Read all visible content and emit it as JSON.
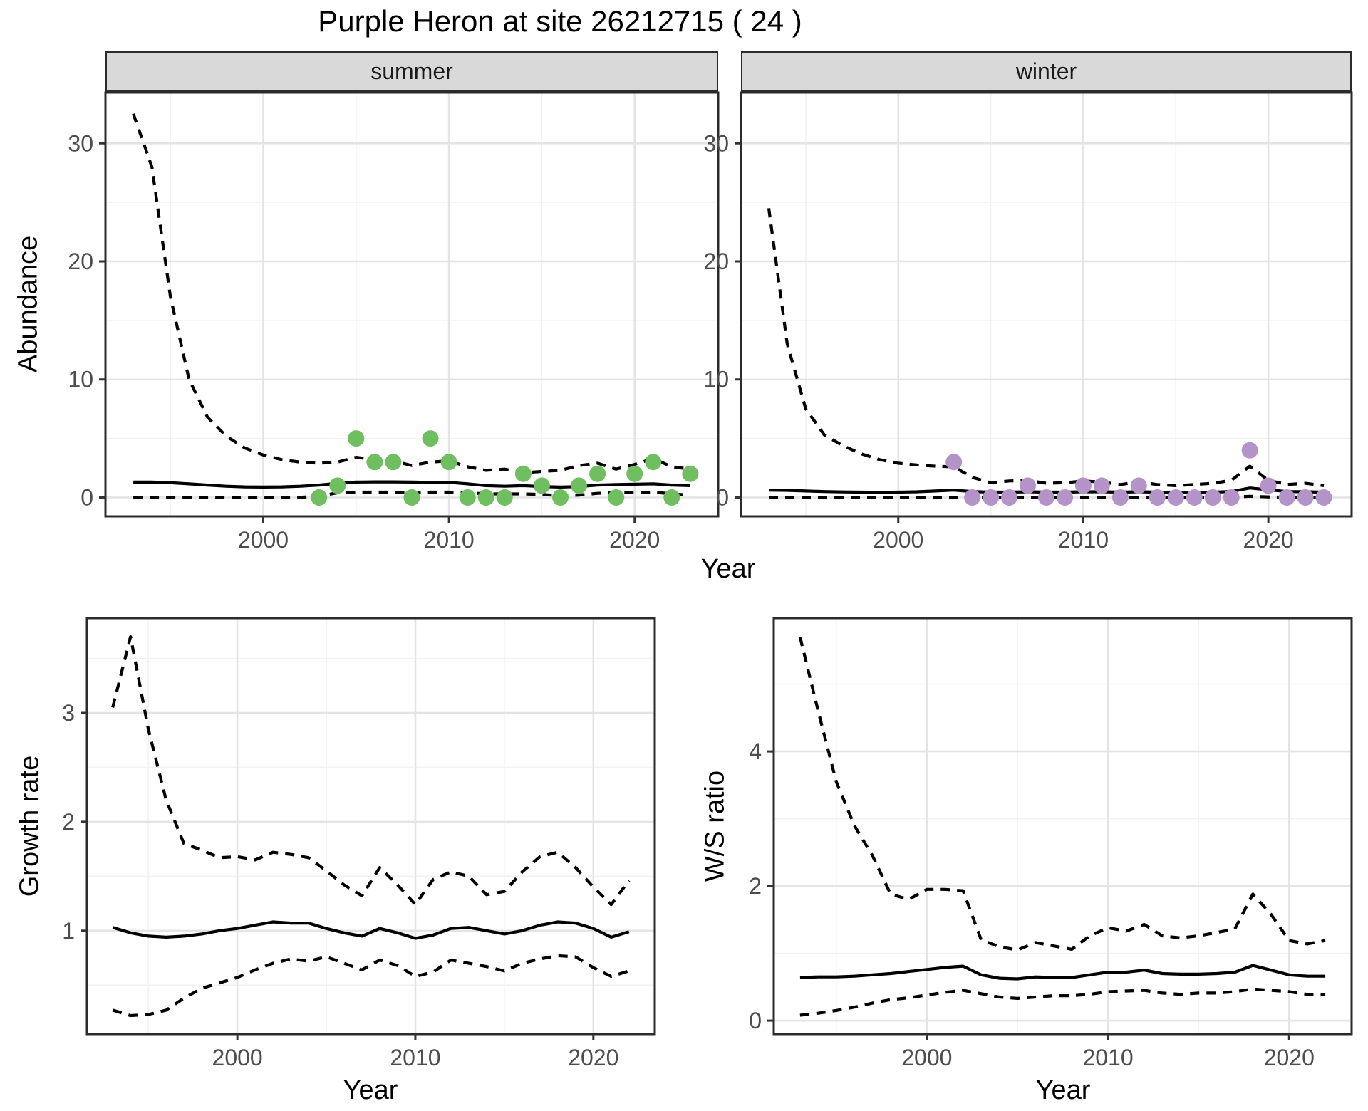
{
  "title": "Purple Heron at site 26212715 ( 24 )",
  "top_row": {
    "ylabel": "Abundance",
    "xlabel": "Year",
    "facets": [
      {
        "label": "summer"
      },
      {
        "label": "winter"
      }
    ]
  },
  "bottom_row": {
    "left": {
      "ylabel": "Growth rate",
      "xlabel": "Year"
    },
    "right": {
      "ylabel": "W/S ratio",
      "xlabel": "Year"
    }
  },
  "colors": {
    "line": "#000000",
    "panel_border": "#2b2b2b",
    "grid_major": "#e4e4e4",
    "grid_minor": "#f2f2f2",
    "tick_text": "#4d4d4d",
    "strip_bg": "#d9d9d9",
    "summer_point": "#6fbe5f",
    "winter_point": "#b493c8"
  },
  "chart_data": [
    {
      "type": "line",
      "title": "summer",
      "xlabel": "Year",
      "ylabel": "Abundance",
      "legend": "none",
      "grid": true,
      "xlim": [
        1991.5,
        2024.5
      ],
      "ylim": [
        -1.6,
        34.3
      ],
      "xticks": [
        2000,
        2010,
        2020
      ],
      "xticks_minor": [
        1995,
        2005,
        2015
      ],
      "yticks": [
        0,
        10,
        20,
        30
      ],
      "yticks_minor": [
        5,
        15,
        25
      ],
      "x": [
        1993,
        1994,
        1995,
        1996,
        1997,
        1998,
        1999,
        2000,
        2001,
        2002,
        2003,
        2004,
        2005,
        2006,
        2007,
        2008,
        2009,
        2010,
        2011,
        2012,
        2013,
        2014,
        2015,
        2016,
        2017,
        2018,
        2019,
        2020,
        2021,
        2022,
        2023
      ],
      "series": [
        {
          "name": "upper_ci",
          "style": "dashed",
          "values": [
            32.5,
            28,
            17,
            10,
            6.8,
            5.2,
            4.2,
            3.6,
            3.2,
            3.0,
            2.9,
            3.0,
            3.4,
            3.2,
            3.1,
            2.7,
            3.0,
            3.1,
            2.6,
            2.3,
            2.4,
            2.1,
            2.2,
            2.3,
            2.7,
            2.9,
            2.4,
            2.8,
            3.3,
            2.6,
            2.4
          ]
        },
        {
          "name": "fit",
          "style": "solid",
          "values": [
            1.3,
            1.3,
            1.25,
            1.15,
            1.05,
            0.95,
            0.9,
            0.88,
            0.9,
            0.95,
            1.05,
            1.2,
            1.3,
            1.32,
            1.32,
            1.3,
            1.28,
            1.28,
            1.15,
            1.0,
            0.95,
            1.0,
            0.92,
            0.88,
            0.92,
            1.05,
            1.1,
            1.12,
            1.15,
            1.05,
            1.0
          ]
        },
        {
          "name": "lower_ci",
          "style": "dashed",
          "values": [
            0.02,
            0.02,
            0.02,
            0.02,
            0.02,
            0.02,
            0.02,
            0.02,
            0.02,
            0.02,
            0.1,
            0.4,
            0.45,
            0.45,
            0.45,
            0.4,
            0.45,
            0.45,
            0.4,
            0.3,
            0.3,
            0.3,
            0.25,
            0.15,
            0.2,
            0.35,
            0.4,
            0.4,
            0.45,
            0.3,
            0.2
          ]
        }
      ],
      "points": {
        "name": "summer observed counts",
        "color": "#6fbe5f",
        "values": [
          [
            2003,
            0
          ],
          [
            2004,
            1
          ],
          [
            2005,
            5
          ],
          [
            2006,
            3
          ],
          [
            2007,
            3
          ],
          [
            2008,
            0
          ],
          [
            2009,
            5
          ],
          [
            2010,
            3
          ],
          [
            2011,
            0
          ],
          [
            2012,
            0
          ],
          [
            2013,
            0
          ],
          [
            2014,
            2
          ],
          [
            2015,
            1
          ],
          [
            2016,
            0
          ],
          [
            2017,
            1
          ],
          [
            2018,
            2
          ],
          [
            2019,
            0
          ],
          [
            2020,
            2
          ],
          [
            2021,
            3
          ],
          [
            2022,
            0
          ],
          [
            2023,
            2
          ]
        ]
      }
    },
    {
      "type": "line",
      "title": "winter",
      "xlabel": "Year",
      "ylabel": "Abundance",
      "legend": "none",
      "grid": true,
      "xlim": [
        1991.5,
        2024.5
      ],
      "ylim": [
        -1.6,
        34.3
      ],
      "xticks": [
        2000,
        2010,
        2020
      ],
      "xticks_minor": [
        1995,
        2005,
        2015
      ],
      "yticks": [
        0,
        10,
        20,
        30
      ],
      "yticks_minor": [
        5,
        15,
        25
      ],
      "x": [
        1993,
        1994,
        1995,
        1996,
        1997,
        1998,
        1999,
        2000,
        2001,
        2002,
        2003,
        2004,
        2005,
        2006,
        2007,
        2008,
        2009,
        2010,
        2011,
        2012,
        2013,
        2014,
        2015,
        2016,
        2017,
        2018,
        2019,
        2020,
        2021,
        2022,
        2023
      ],
      "series": [
        {
          "name": "upper_ci",
          "style": "dashed",
          "values": [
            24.5,
            13,
            7.5,
            5.3,
            4.4,
            3.7,
            3.2,
            2.9,
            2.75,
            2.65,
            2.6,
            1.7,
            1.25,
            1.4,
            1.45,
            1.2,
            1.25,
            1.4,
            1.3,
            1.1,
            1.3,
            1.1,
            1.0,
            1.1,
            1.2,
            1.45,
            2.65,
            1.45,
            1.1,
            1.2,
            1.0
          ]
        },
        {
          "name": "fit",
          "style": "solid",
          "values": [
            0.62,
            0.6,
            0.55,
            0.5,
            0.47,
            0.45,
            0.44,
            0.45,
            0.48,
            0.55,
            0.62,
            0.5,
            0.45,
            0.45,
            0.48,
            0.45,
            0.45,
            0.48,
            0.48,
            0.45,
            0.48,
            0.45,
            0.44,
            0.44,
            0.45,
            0.5,
            0.8,
            0.65,
            0.5,
            0.48,
            0.45
          ]
        },
        {
          "name": "lower_ci",
          "style": "dashed",
          "values": [
            0.02,
            0.02,
            0.02,
            0.02,
            0.02,
            0.02,
            0.02,
            0.02,
            0.02,
            0.02,
            0.02,
            0.02,
            0.02,
            0.02,
            0.02,
            0.02,
            0.02,
            0.02,
            0.02,
            0.02,
            0.02,
            0.02,
            0.02,
            0.02,
            0.02,
            0.02,
            0.1,
            0.05,
            0.02,
            0.02,
            0.02
          ]
        }
      ],
      "points": {
        "name": "winter observed counts",
        "color": "#b493c8",
        "values": [
          [
            2003,
            3
          ],
          [
            2004,
            0
          ],
          [
            2005,
            0
          ],
          [
            2006,
            0
          ],
          [
            2007,
            1
          ],
          [
            2008,
            0
          ],
          [
            2009,
            0
          ],
          [
            2010,
            1
          ],
          [
            2011,
            1
          ],
          [
            2012,
            0
          ],
          [
            2013,
            1
          ],
          [
            2014,
            0
          ],
          [
            2015,
            0
          ],
          [
            2016,
            0
          ],
          [
            2017,
            0
          ],
          [
            2018,
            0
          ],
          [
            2019,
            4
          ],
          [
            2020,
            1
          ],
          [
            2021,
            0
          ],
          [
            2022,
            0
          ],
          [
            2023,
            0
          ]
        ]
      }
    },
    {
      "type": "line",
      "title": "Growth rate",
      "xlabel": "Year",
      "ylabel": "Growth rate",
      "legend": "none",
      "grid": true,
      "xlim": [
        1991.55,
        2023.45
      ],
      "ylim": [
        0.05,
        3.87
      ],
      "xticks": [
        2000,
        2010,
        2020
      ],
      "xticks_minor": [
        1995,
        2005,
        2015
      ],
      "yticks": [
        1,
        2,
        3
      ],
      "yticks_minor": [
        0.5,
        1.5,
        2.5,
        3.5
      ],
      "x": [
        1993,
        1994,
        1995,
        1996,
        1997,
        1998,
        1999,
        2000,
        2001,
        2002,
        2003,
        2004,
        2005,
        2006,
        2007,
        2008,
        2009,
        2010,
        2011,
        2012,
        2013,
        2014,
        2015,
        2016,
        2017,
        2018,
        2019,
        2020,
        2021,
        2022
      ],
      "series": [
        {
          "name": "upper_ci",
          "style": "dashed",
          "values": [
            3.05,
            3.7,
            2.85,
            2.2,
            1.8,
            1.74,
            1.67,
            1.68,
            1.65,
            1.72,
            1.7,
            1.67,
            1.55,
            1.42,
            1.32,
            1.58,
            1.42,
            1.24,
            1.47,
            1.54,
            1.5,
            1.33,
            1.36,
            1.54,
            1.68,
            1.72,
            1.58,
            1.4,
            1.24,
            1.46
          ]
        },
        {
          "name": "fit",
          "style": "solid",
          "values": [
            1.03,
            0.98,
            0.95,
            0.94,
            0.95,
            0.97,
            1.0,
            1.02,
            1.05,
            1.08,
            1.07,
            1.07,
            1.02,
            0.98,
            0.95,
            1.02,
            0.98,
            0.93,
            0.96,
            1.02,
            1.03,
            1.0,
            0.97,
            1.0,
            1.05,
            1.08,
            1.07,
            1.02,
            0.94,
            0.99
          ]
        },
        {
          "name": "lower_ci",
          "style": "dashed",
          "values": [
            0.27,
            0.22,
            0.23,
            0.27,
            0.38,
            0.47,
            0.52,
            0.57,
            0.64,
            0.7,
            0.74,
            0.72,
            0.76,
            0.7,
            0.64,
            0.73,
            0.68,
            0.58,
            0.62,
            0.73,
            0.7,
            0.67,
            0.63,
            0.7,
            0.74,
            0.77,
            0.76,
            0.66,
            0.58,
            0.63
          ]
        }
      ],
      "points": null
    },
    {
      "type": "line",
      "title": "W/S ratio",
      "xlabel": "Year",
      "ylabel": "W/S ratio",
      "legend": "none",
      "grid": true,
      "xlim": [
        1991.55,
        2023.45
      ],
      "ylim": [
        -0.2,
        5.98
      ],
      "xticks": [
        2000,
        2010,
        2020
      ],
      "xticks_minor": [
        1995,
        2005,
        2015
      ],
      "yticks": [
        0,
        2,
        4
      ],
      "yticks_minor": [
        1,
        3,
        5
      ],
      "x": [
        1993,
        1994,
        1995,
        1996,
        1997,
        1998,
        1999,
        2000,
        2001,
        2002,
        2003,
        2004,
        2005,
        2006,
        2007,
        2008,
        2009,
        2010,
        2011,
        2012,
        2013,
        2014,
        2015,
        2016,
        2017,
        2018,
        2019,
        2020,
        2021,
        2022
      ],
      "series": [
        {
          "name": "upper_ci",
          "style": "dashed",
          "values": [
            5.7,
            4.6,
            3.55,
            2.9,
            2.45,
            1.88,
            1.8,
            1.95,
            1.95,
            1.93,
            1.2,
            1.1,
            1.05,
            1.16,
            1.11,
            1.06,
            1.26,
            1.38,
            1.33,
            1.43,
            1.26,
            1.23,
            1.26,
            1.31,
            1.36,
            1.88,
            1.58,
            1.19,
            1.14,
            1.19
          ]
        },
        {
          "name": "fit",
          "style": "solid",
          "values": [
            0.64,
            0.65,
            0.65,
            0.66,
            0.68,
            0.7,
            0.73,
            0.76,
            0.79,
            0.81,
            0.68,
            0.63,
            0.62,
            0.65,
            0.64,
            0.64,
            0.68,
            0.72,
            0.72,
            0.75,
            0.7,
            0.69,
            0.69,
            0.7,
            0.72,
            0.82,
            0.75,
            0.68,
            0.66,
            0.66
          ]
        },
        {
          "name": "lower_ci",
          "style": "dashed",
          "values": [
            0.08,
            0.11,
            0.15,
            0.2,
            0.26,
            0.31,
            0.34,
            0.38,
            0.42,
            0.45,
            0.4,
            0.35,
            0.33,
            0.35,
            0.37,
            0.37,
            0.39,
            0.43,
            0.44,
            0.45,
            0.41,
            0.39,
            0.41,
            0.41,
            0.43,
            0.47,
            0.45,
            0.43,
            0.39,
            0.39
          ]
        }
      ],
      "points": null
    }
  ]
}
